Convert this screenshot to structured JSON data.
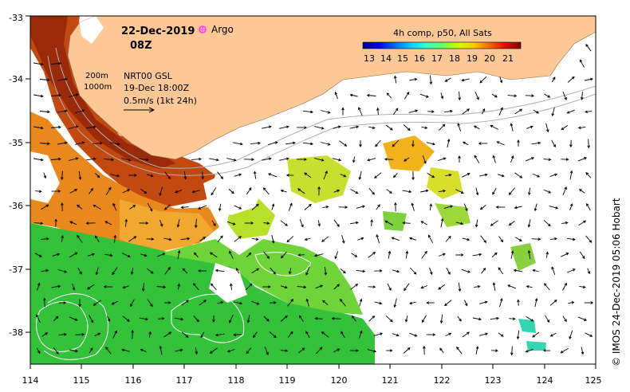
{
  "title": {
    "date": "22-Dec-2019",
    "hour": "08Z",
    "argo_label": "Argo"
  },
  "legend": {
    "contours": [
      "200m",
      "1000m"
    ],
    "current_source": "NRT00 GSL",
    "current_time": "19-Dec 18:00Z",
    "vector_scale": "0.5m/s (1kt 24h)"
  },
  "colorbar": {
    "title": "4h comp, p50, All Sats",
    "ticks": [
      "13",
      "14",
      "15",
      "16",
      "17",
      "18",
      "19",
      "20",
      "21"
    ],
    "colors": [
      "#00007f",
      "#0000ff",
      "#0066ff",
      "#00ccff",
      "#33ffcc",
      "#66ff66",
      "#ccff00",
      "#ffcc00",
      "#ff6600",
      "#dd1100",
      "#880000"
    ]
  },
  "axes": {
    "x_ticks": [
      "114",
      "115",
      "116",
      "117",
      "118",
      "119",
      "120",
      "121",
      "122",
      "123",
      "124",
      "125"
    ],
    "y_ticks": [
      "-33",
      "-34",
      "-35",
      "-36",
      "-37",
      "-38"
    ]
  },
  "colors": {
    "land": "#fdc896",
    "no_data": "#ffffff",
    "contour": "#b0b0b0",
    "argo": "#ff33ff"
  },
  "credit": "© IMOS 24-Dec-2019 05:06 Hobart"
}
